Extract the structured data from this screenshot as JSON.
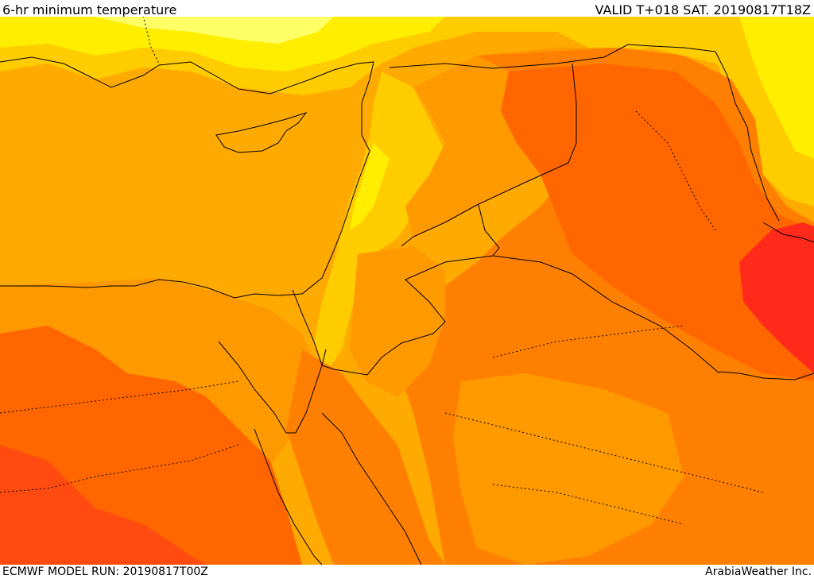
{
  "header": {
    "title": "6-hr minimum temperature",
    "valid": "VALID T+018 SAT. 20190817T18Z"
  },
  "footer": {
    "model_run": "ECMWF MODEL RUN: 20190817T00Z",
    "credit": "ArabiaWeather Inc."
  },
  "palette": {
    "yellow_light": "#ffff66",
    "yellow": "#ffee00",
    "amber": "#ffcc00",
    "gold": "#ffaa00",
    "orange_light": "#ff9900",
    "orange": "#ff8000",
    "orange_dark": "#ff6600",
    "red_orange": "#ff4a10",
    "red": "#ff2a1a"
  }
}
